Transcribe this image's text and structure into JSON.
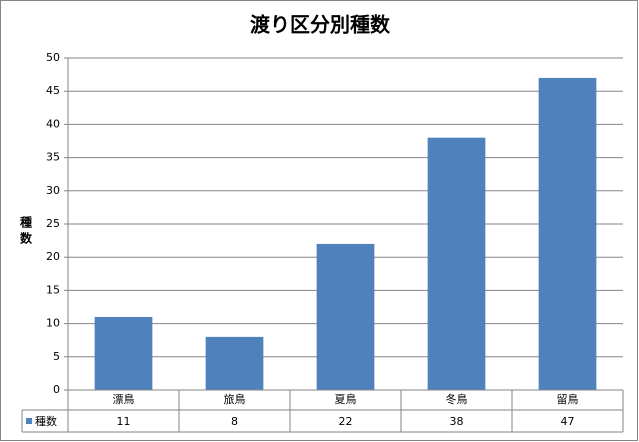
{
  "chart_data": {
    "type": "bar",
    "title": "渡り区分別種数",
    "y_label": "種数",
    "categories": [
      "漂鳥",
      "旅鳥",
      "夏鳥",
      "冬鳥",
      "留鳥"
    ],
    "series": [
      {
        "name": "種数",
        "color": "#4f81bd",
        "values": [
          11,
          8,
          22,
          38,
          47
        ]
      }
    ],
    "ylim": [
      0,
      50
    ],
    "yticks": [
      0,
      5,
      10,
      15,
      20,
      25,
      30,
      35,
      40,
      45,
      50
    ],
    "grid": true,
    "data_table": true
  }
}
